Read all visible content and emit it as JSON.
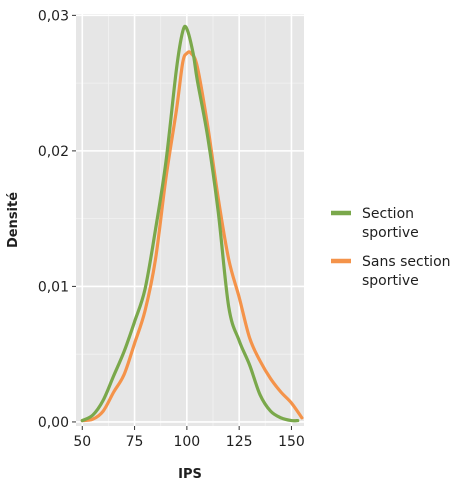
{
  "chart_data": {
    "type": "line",
    "xlabel": "IPS",
    "ylabel": "Densité",
    "xlim": [
      47,
      156
    ],
    "ylim": [
      -0.0003,
      0.0301
    ],
    "x_ticks": [
      50,
      75,
      100,
      125,
      150
    ],
    "x_tick_labels": [
      "50",
      "75",
      "100",
      "125",
      "150"
    ],
    "y_ticks": [
      0,
      0.01,
      0.02,
      0.03
    ],
    "y_tick_labels": [
      "0,00",
      "0,01",
      "0,02",
      "0,03"
    ],
    "grid": true,
    "legend_position": "right",
    "series": [
      {
        "name": "Section sportive",
        "color": "#7aa84b",
        "x": [
          50,
          55,
          60,
          65,
          70,
          75,
          80,
          85,
          90,
          95,
          98,
          100,
          103,
          105,
          110,
          115,
          120,
          125,
          130,
          135,
          140,
          145,
          150,
          153
        ],
        "y": [
          0.0001,
          0.0005,
          0.0016,
          0.0034,
          0.0052,
          0.0074,
          0.0098,
          0.0142,
          0.0192,
          0.026,
          0.0288,
          0.029,
          0.0272,
          0.0252,
          0.021,
          0.0155,
          0.0085,
          0.006,
          0.0042,
          0.002,
          0.0008,
          0.0003,
          0.0001,
          0.0001
        ]
      },
      {
        "name": "Sans section sportive",
        "color": "#f4934a",
        "x": [
          50,
          55,
          60,
          65,
          70,
          75,
          80,
          85,
          90,
          95,
          98,
          100,
          102,
          105,
          110,
          115,
          120,
          125,
          130,
          135,
          140,
          145,
          150,
          155
        ],
        "y": [
          0.0001,
          0.0002,
          0.0008,
          0.0022,
          0.0035,
          0.0058,
          0.0082,
          0.012,
          0.018,
          0.023,
          0.0265,
          0.0272,
          0.0272,
          0.0262,
          0.0218,
          0.0165,
          0.012,
          0.0092,
          0.0062,
          0.0045,
          0.0032,
          0.0022,
          0.0014,
          0.0003
        ]
      }
    ]
  }
}
